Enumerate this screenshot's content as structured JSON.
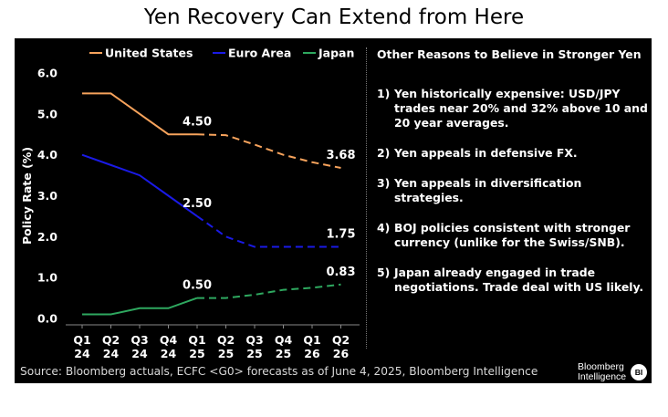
{
  "header": {
    "title": "Yen Recovery Can Extend from Here"
  },
  "chart_data": {
    "type": "line",
    "ylabel": "Policy Rate (%)",
    "xlabel": "",
    "ylim": [
      0,
      6
    ],
    "yticks": [
      "0.0",
      "1.0",
      "2.0",
      "3.0",
      "4.0",
      "5.0",
      "6.0"
    ],
    "grid": false,
    "legend_position": "top",
    "categories": [
      {
        "q": "Q1",
        "y": "24"
      },
      {
        "q": "Q2",
        "y": "24"
      },
      {
        "q": "Q3",
        "y": "24"
      },
      {
        "q": "Q4",
        "y": "24"
      },
      {
        "q": "Q1",
        "y": "25"
      },
      {
        "q": "Q2",
        "y": "25"
      },
      {
        "q": "Q3",
        "y": "25"
      },
      {
        "q": "Q4",
        "y": "25"
      },
      {
        "q": "Q1",
        "y": "26"
      },
      {
        "q": "Q2",
        "y": "26"
      }
    ],
    "actual_until_index": 4,
    "series": [
      {
        "name": "United States",
        "color": "#f7a35c",
        "values": [
          5.5,
          5.5,
          5.0,
          4.5,
          4.5,
          4.48,
          4.25,
          4.0,
          3.82,
          3.68
        ],
        "labels": [
          {
            "index": 4,
            "text": "4.50"
          },
          {
            "index": 9,
            "text": "3.68"
          }
        ]
      },
      {
        "name": "Euro Area",
        "color": "#1a1ae6",
        "values": [
          4.0,
          3.75,
          3.5,
          3.0,
          2.5,
          2.0,
          1.75,
          1.75,
          1.75,
          1.75
        ],
        "labels": [
          {
            "index": 4,
            "text": "2.50"
          },
          {
            "index": 9,
            "text": "1.75"
          }
        ]
      },
      {
        "name": "Japan",
        "color": "#2ea85f",
        "values": [
          0.1,
          0.1,
          0.25,
          0.25,
          0.5,
          0.5,
          0.58,
          0.7,
          0.75,
          0.83
        ],
        "labels": [
          {
            "index": 4,
            "text": "0.50"
          },
          {
            "index": 9,
            "text": "0.83"
          }
        ]
      }
    ]
  },
  "reasons": {
    "heading": "Other Reasons to Believe in Stronger Yen",
    "items": [
      {
        "num": "1)",
        "text": "Yen historically expensive: USD/JPY trades near 20% and 32% above 10 and 20 year averages."
      },
      {
        "num": "2)",
        "text": "Yen appeals in defensive FX."
      },
      {
        "num": "3)",
        "text": "Yen appeals in diversification strategies."
      },
      {
        "num": "4)",
        "text": "BOJ policies consistent with stronger currency (unlike for the Swiss/SNB)."
      },
      {
        "num": "5)",
        "text": "Japan already engaged in trade negotiations. Trade deal with US likely."
      }
    ]
  },
  "footer": {
    "source": "Source: Bloomberg actuals, ECFC <G0> forecasts as of June 4, 2025, Bloomberg Intelligence",
    "brand_line1": "Bloomberg",
    "brand_line2": "Intelligence",
    "brand_badge": "BI"
  }
}
